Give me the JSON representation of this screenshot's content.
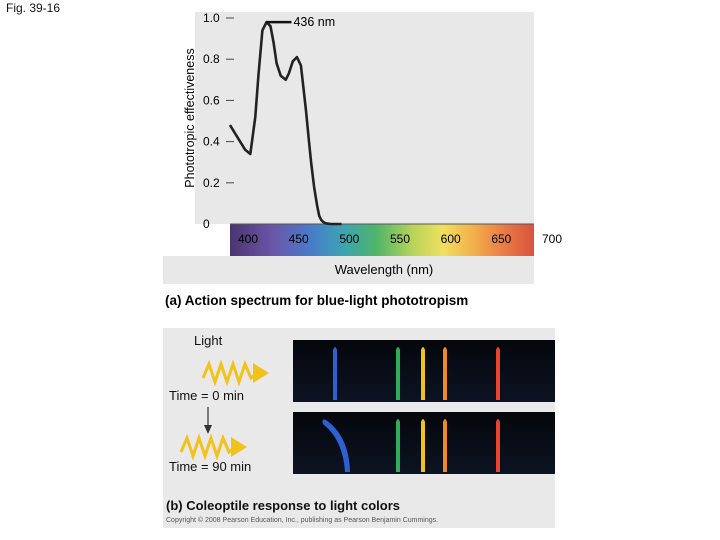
{
  "figure": {
    "label": "Fig. 39-16"
  },
  "chart_data": {
    "type": "line",
    "title": "(a) Action spectrum for blue-light phototropism",
    "xlabel": "Wavelength (nm)",
    "ylabel": "Phototropic effectiveness",
    "xlim": [
      400,
      700
    ],
    "ylim": [
      0,
      1.0
    ],
    "x_ticks": [
      "400",
      "450",
      "500",
      "550",
      "600",
      "650",
      "700"
    ],
    "y_ticks": [
      "0",
      "0.2",
      "0.4",
      "0.6",
      "0.8",
      "1.0"
    ],
    "grid": false,
    "background": "spectrum",
    "annotation": {
      "text": "436 nm",
      "x": 436,
      "y": 0.98
    },
    "series": [
      {
        "name": "",
        "color": "#222222",
        "x": [
          400,
          405,
          410,
          415,
          420,
          425,
          428,
          432,
          436,
          440,
          443,
          446,
          450,
          455,
          458,
          462,
          466,
          470,
          472,
          475,
          478,
          480,
          483,
          486,
          488,
          490,
          492,
          494,
          496,
          498,
          500,
          505,
          510
        ],
        "y": [
          0.48,
          0.44,
          0.4,
          0.36,
          0.34,
          0.52,
          0.72,
          0.94,
          0.98,
          0.96,
          0.88,
          0.78,
          0.72,
          0.7,
          0.73,
          0.79,
          0.81,
          0.77,
          0.68,
          0.55,
          0.4,
          0.3,
          0.18,
          0.09,
          0.04,
          0.02,
          0.01,
          0.004,
          0.002,
          0.001,
          0.0,
          0.0,
          0.0
        ]
      }
    ]
  },
  "panel_b": {
    "light_label": "Light",
    "time0_label": "Time = 0 min",
    "time90_label": "Time = 90 min",
    "caption": "(b) Coleoptile response to light colors",
    "copyright": "Copyright © 2008 Pearson Education, Inc., publishing as Pearson Benjamin Cummings.",
    "coleoptile_colors": [
      "#2f5fd0",
      "#2fae5a",
      "#f2c21c",
      "#f28a22",
      "#e8452c"
    ],
    "bent_coleoptile": "blue",
    "arrow_color": "#f2c21c"
  }
}
